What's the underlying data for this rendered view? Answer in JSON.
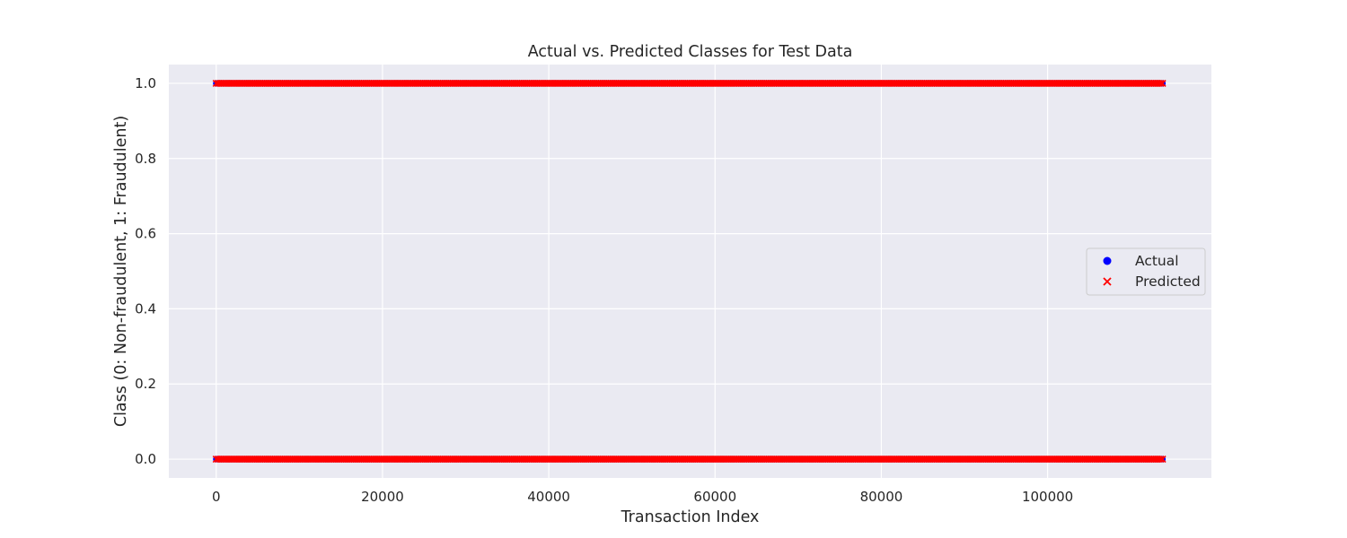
{
  "chart_data": {
    "type": "scatter",
    "title": "Actual vs. Predicted Classes for Test Data",
    "xlabel": "Transaction Index",
    "ylabel": "Class (0: Non-fraudulent, 1: Fraudulent)",
    "xlim": [
      -5700,
      119700
    ],
    "ylim": [
      -0.05,
      1.05
    ],
    "xticks": [
      0,
      20000,
      40000,
      60000,
      80000,
      100000
    ],
    "xtick_labels": [
      "0",
      "20000",
      "40000",
      "60000",
      "80000",
      "100000"
    ],
    "yticks": [
      0.0,
      0.2,
      0.4,
      0.6,
      0.8,
      1.0
    ],
    "ytick_labels": [
      "0.0",
      "0.2",
      "0.4",
      "0.6",
      "0.8",
      "1.0"
    ],
    "grid": true,
    "legend_position": "center-right",
    "x_range": [
      0,
      113990
    ],
    "series": [
      {
        "name": "Actual",
        "marker": "circle",
        "color": "#0000ff",
        "y_levels": [
          0,
          1
        ]
      },
      {
        "name": "Predicted",
        "marker": "x",
        "color": "#ff0000",
        "y_levels": [
          0,
          1
        ]
      }
    ],
    "colors": {
      "background": "#eaeaf2",
      "grid": "#ffffff",
      "text": "#262626"
    }
  }
}
